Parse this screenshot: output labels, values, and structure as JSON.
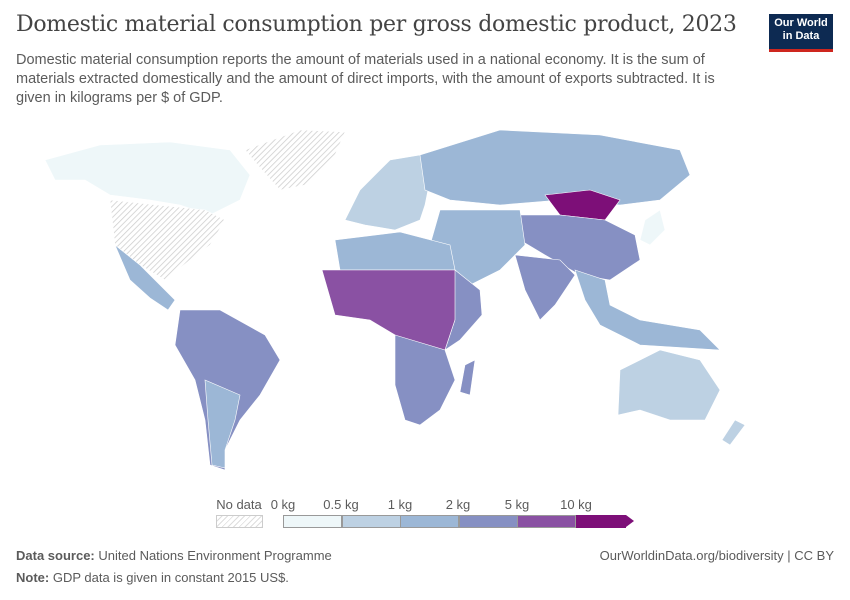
{
  "header": {
    "title": "Domestic material consumption per gross domestic product, 2023",
    "subtitle": "Domestic material consumption reports the amount of materials used in a national economy. It is the sum of materials extracted domestically and the amount of direct imports, with the amount of exports subtracted. It is given in kilograms per $ of GDP.",
    "logo": "Our World in Data"
  },
  "legend": {
    "no_data_label": "No data",
    "bins": [
      "0 kg",
      "0.5 kg",
      "1 kg",
      "2 kg",
      "5 kg",
      "10 kg"
    ],
    "colors": [
      "#eef7f9",
      "#bdd1e3",
      "#9cb7d6",
      "#8690c3",
      "#8a51a3",
      "#7d0f78"
    ],
    "no_data_color": "#dddddd"
  },
  "footer": {
    "source_label": "Data source:",
    "source": "United Nations Environment Programme",
    "note_label": "Note:",
    "note": "GDP data is given in constant 2015 US$.",
    "url": "OurWorldinData.org/biodiversity | CC BY"
  }
}
